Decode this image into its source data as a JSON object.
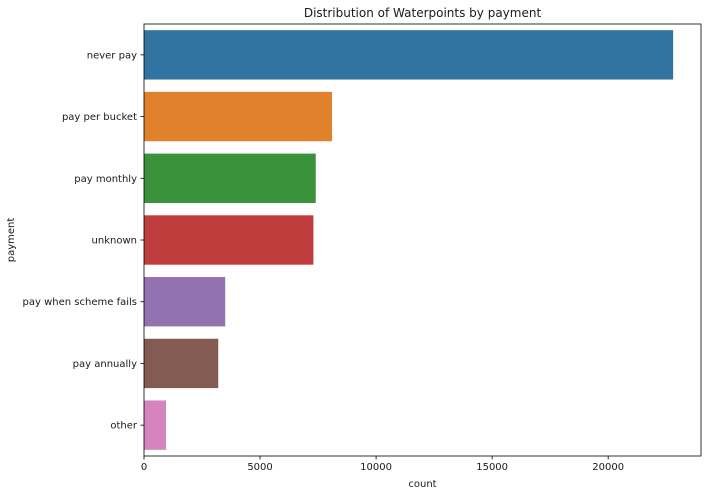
{
  "chart_data": {
    "type": "bar",
    "orientation": "horizontal",
    "title": "Distribution of Waterpoints by payment",
    "xlabel": "count",
    "ylabel": "payment",
    "categories": [
      "never pay",
      "pay per bucket",
      "pay monthly",
      "unknown",
      "pay when scheme fails",
      "pay annually",
      "other"
    ],
    "values": [
      22800,
      8100,
      7400,
      7300,
      3500,
      3200,
      950
    ],
    "colors": [
      "#3274a1",
      "#e1812c",
      "#3a923a",
      "#c03d3e",
      "#9372b2",
      "#845b53",
      "#d684bd"
    ],
    "xlim": [
      0,
      24000
    ],
    "xticks": [
      0,
      5000,
      10000,
      15000,
      20000
    ],
    "grid": false,
    "legend": "none"
  }
}
